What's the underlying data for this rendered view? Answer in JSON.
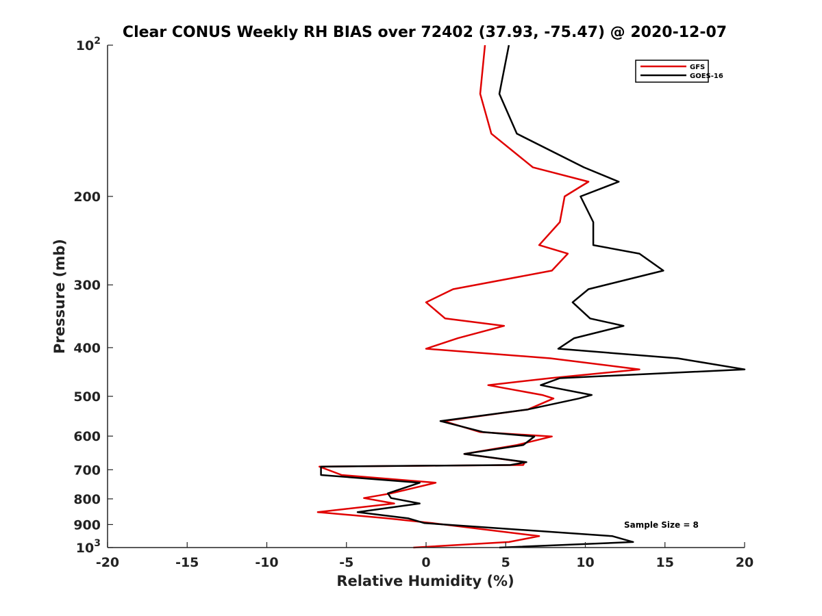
{
  "chart_data": {
    "type": "line",
    "title": "Clear CONUS Weekly RH BIAS over 72402 (37.93, -75.47) @ 2020-12-07",
    "xlabel": "Relative Humidity (%)",
    "ylabel": "Pressure (mb)",
    "xlim": [
      -20,
      20
    ],
    "ylim": [
      1000,
      100
    ],
    "yscale": "log",
    "x_ticks": [
      -20,
      -15,
      -10,
      -5,
      0,
      5,
      10,
      15,
      20
    ],
    "x_tick_labels": [
      "-20",
      "-15",
      "-10",
      "-5",
      "0",
      "5",
      "10",
      "15",
      "20"
    ],
    "y_ticks": [
      100,
      200,
      300,
      400,
      500,
      600,
      700,
      800,
      900,
      1000
    ],
    "y_tick_labels": [
      {
        "base": "10",
        "exp": "2"
      },
      {
        "base": "200",
        "exp": ""
      },
      {
        "base": "300",
        "exp": ""
      },
      {
        "base": "400",
        "exp": ""
      },
      {
        "base": "500",
        "exp": ""
      },
      {
        "base": "600",
        "exp": ""
      },
      {
        "base": "700",
        "exp": ""
      },
      {
        "base": "800",
        "exp": ""
      },
      {
        "base": "900",
        "exp": ""
      },
      {
        "base": "10",
        "exp": "3"
      }
    ],
    "legend_position": "top-right",
    "annotation": "Sample Size = 8",
    "series": [
      {
        "name": "GFS",
        "color": "#e00000",
        "points": [
          [
            3.7,
            100
          ],
          [
            3.4,
            125
          ],
          [
            4.1,
            150
          ],
          [
            6.7,
            175
          ],
          [
            10.2,
            187
          ],
          [
            8.7,
            200
          ],
          [
            8.4,
            225
          ],
          [
            7.1,
            250
          ],
          [
            8.9,
            260
          ],
          [
            7.9,
            281
          ],
          [
            1.7,
            306
          ],
          [
            0.0,
            325
          ],
          [
            1.2,
            350
          ],
          [
            4.9,
            362
          ],
          [
            2.0,
            383
          ],
          [
            0.0,
            402
          ],
          [
            7.8,
            420
          ],
          [
            13.4,
            442
          ],
          [
            7.8,
            460
          ],
          [
            3.9,
            475
          ],
          [
            7.3,
            497
          ],
          [
            8.0,
            505
          ],
          [
            6.4,
            531
          ],
          [
            1.1,
            560
          ],
          [
            3.4,
            589
          ],
          [
            7.9,
            601
          ],
          [
            5.7,
            625
          ],
          [
            2.4,
            651
          ],
          [
            6.2,
            676
          ],
          [
            6.1,
            685
          ],
          [
            -6.7,
            690
          ],
          [
            -5.3,
            717
          ],
          [
            0.6,
            743
          ],
          [
            -2.2,
            780
          ],
          [
            -3.9,
            797
          ],
          [
            -2.0,
            817
          ],
          [
            -6.8,
            850
          ],
          [
            -2.4,
            875
          ],
          [
            0.4,
            894
          ],
          [
            7.1,
            949
          ],
          [
            5.2,
            975
          ],
          [
            -0.8,
            1000
          ]
        ]
      },
      {
        "name": "GOES-16",
        "color": "#000000",
        "points": [
          [
            5.2,
            100
          ],
          [
            4.6,
            125
          ],
          [
            5.7,
            150
          ],
          [
            9.9,
            175
          ],
          [
            12.1,
            187
          ],
          [
            9.7,
            200
          ],
          [
            10.5,
            225
          ],
          [
            10.5,
            250
          ],
          [
            13.4,
            260
          ],
          [
            14.9,
            281
          ],
          [
            10.2,
            306
          ],
          [
            9.2,
            325
          ],
          [
            10.3,
            350
          ],
          [
            12.4,
            362
          ],
          [
            9.3,
            383
          ],
          [
            8.3,
            402
          ],
          [
            15.8,
            420
          ],
          [
            20.0,
            442
          ],
          [
            8.4,
            460
          ],
          [
            7.2,
            475
          ],
          [
            10.4,
            497
          ],
          [
            9.6,
            505
          ],
          [
            6.4,
            531
          ],
          [
            0.9,
            560
          ],
          [
            3.6,
            589
          ],
          [
            6.8,
            601
          ],
          [
            6.1,
            625
          ],
          [
            2.4,
            651
          ],
          [
            6.3,
            676
          ],
          [
            5.3,
            685
          ],
          [
            -6.6,
            690
          ],
          [
            -6.6,
            717
          ],
          [
            -0.4,
            743
          ],
          [
            -2.4,
            780
          ],
          [
            -2.2,
            797
          ],
          [
            -0.4,
            817
          ],
          [
            -4.3,
            850
          ],
          [
            -1.1,
            875
          ],
          [
            -0.1,
            894
          ],
          [
            11.7,
            949
          ],
          [
            13.0,
            975
          ],
          [
            4.6,
            1000
          ]
        ]
      }
    ]
  }
}
